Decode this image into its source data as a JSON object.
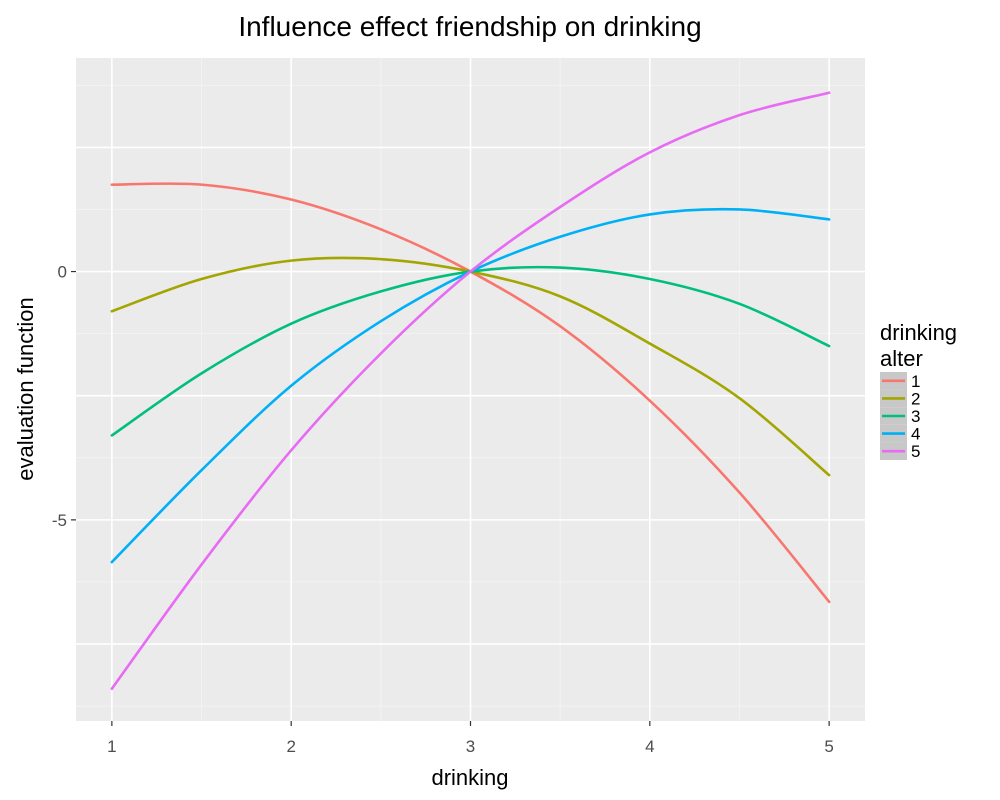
{
  "chart_data": {
    "type": "line",
    "title": "Influence effect friendship on drinking",
    "xlabel": "drinking",
    "ylabel": "evaluation function",
    "legend_title_line1": "drinking",
    "legend_title_line2": "alter",
    "legend_position": "right",
    "grid": true,
    "xlim": [
      0.8,
      5.2
    ],
    "ylim": [
      -9.05,
      4.3
    ],
    "x_ticks": [
      1,
      2,
      3,
      4,
      5
    ],
    "x_tick_labels": [
      "1",
      "2",
      "3",
      "4",
      "5"
    ],
    "y_ticks": [
      -5,
      0
    ],
    "y_tick_labels": [
      "-5",
      "0"
    ],
    "x": [
      1,
      1.5,
      2,
      2.5,
      3,
      3.5,
      4,
      4.5,
      5
    ],
    "series": [
      {
        "name": "1",
        "color": "#F8766D",
        "values": [
          1.75,
          1.75,
          1.45,
          0.85,
          0.0,
          -1.1,
          -2.6,
          -4.45,
          -6.65
        ]
      },
      {
        "name": "2",
        "color": "#A3A500",
        "values": [
          -0.8,
          -0.15,
          0.22,
          0.25,
          0.0,
          -0.5,
          -1.45,
          -2.55,
          -4.1
        ]
      },
      {
        "name": "3",
        "color": "#00BF7D",
        "values": [
          -3.3,
          -2.05,
          -1.05,
          -0.4,
          0.0,
          0.08,
          -0.15,
          -0.65,
          -1.5
        ]
      },
      {
        "name": "4",
        "color": "#00B0F6",
        "values": [
          -5.85,
          -4.0,
          -2.3,
          -1.0,
          0.0,
          0.7,
          1.15,
          1.25,
          1.05
        ]
      },
      {
        "name": "5",
        "color": "#E76BF3",
        "values": [
          -8.4,
          -5.9,
          -3.6,
          -1.65,
          0.0,
          1.3,
          2.4,
          3.15,
          3.6
        ]
      }
    ]
  },
  "colors": {
    "panel_background": "#EBEBEB",
    "grid_major": "#FFFFFF",
    "grid_minor": "#F5F5F5",
    "legend_key_background": "#C8C8C8"
  }
}
